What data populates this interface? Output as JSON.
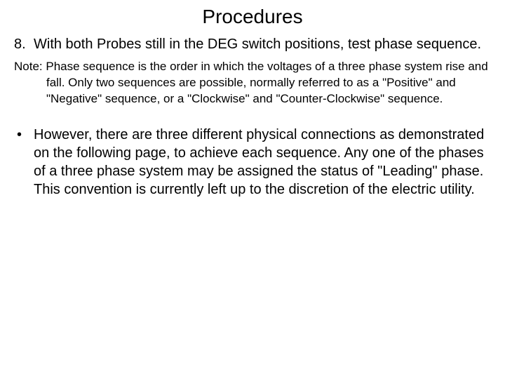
{
  "title": "Procedures",
  "item8": {
    "number": "8.",
    "text": "With both Probes still in the DEG switch positions, test phase sequence."
  },
  "note": {
    "label": "Note:",
    "text": "Phase sequence is the order in which the voltages of a three phase system rise and fall.  Only two sequences are possible, normally referred to as a \"Positive\" and \"Negative\" sequence, or a \"Clockwise\" and \"Counter-Clockwise\" sequence."
  },
  "bullet": {
    "marker": "•",
    "text": "However, there are three different physical connections as demonstrated on the following page, to achieve each sequence. Any one of the phases of a three phase system may be assigned the status of \"Leading\" phase. This convention is currently left up to the discretion of the electric utility."
  }
}
